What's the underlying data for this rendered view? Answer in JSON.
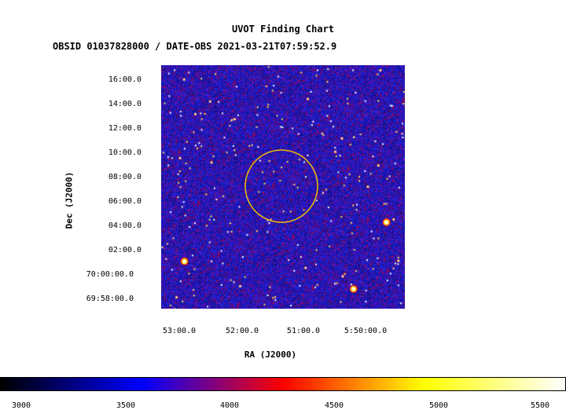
{
  "header": {
    "title": "UVOT Finding Chart",
    "subtitle": "OBSID 01037828000 / DATE-OBS 2021-03-21T07:59:52.9"
  },
  "axes": {
    "xlabel": "RA (J2000)",
    "ylabel": "Dec (J2000)",
    "xticks": [
      "53:00.0",
      "52:00.0",
      "51:00.0",
      "5:50:00.0"
    ],
    "yticks": [
      "16:00.0",
      "14:00.0",
      "12:00.0",
      "10:00.0",
      "08:00.0",
      "06:00.0",
      "04:00.0",
      "02:00.0",
      "70:00:00.0",
      "69:58:00.0"
    ]
  },
  "colorbar": {
    "ticks": [
      "3000",
      "3500",
      "4000",
      "4500",
      "5000",
      "5500"
    ],
    "colors": [
      "#000000",
      "#0000ff",
      "#ff0000",
      "#ffff00",
      "#ffffff"
    ]
  },
  "overlay": {
    "circle_color": "#f0c000"
  },
  "image_background": "#1e1eaa"
}
